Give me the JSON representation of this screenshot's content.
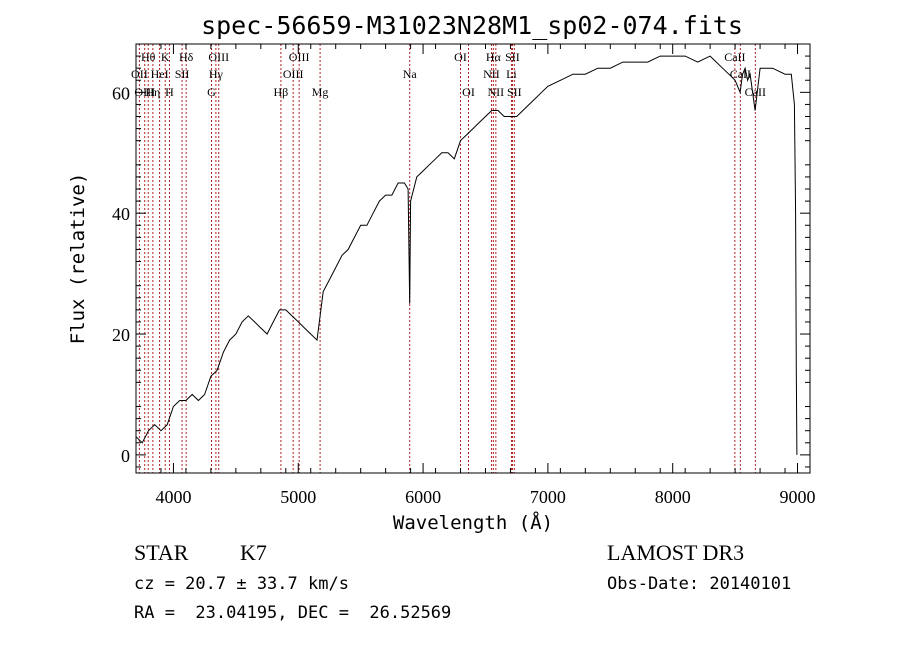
{
  "chart_data": {
    "type": "line",
    "title": "spec-56659-M31023N28M1_sp02-074.fits",
    "xlabel": "Wavelength (Å)",
    "ylabel": "Flux (relative)",
    "xlim": [
      3700,
      9100
    ],
    "ylim": [
      -3,
      68
    ],
    "x_ticks": [
      4000,
      5000,
      6000,
      7000,
      8000,
      9000
    ],
    "y_ticks": [
      0,
      20,
      40,
      60
    ],
    "grid": false,
    "series": [
      {
        "name": "flux",
        "color": "#000000",
        "points": [
          [
            3700,
            3
          ],
          [
            3750,
            2
          ],
          [
            3800,
            4
          ],
          [
            3850,
            5
          ],
          [
            3900,
            4
          ],
          [
            3950,
            5
          ],
          [
            4000,
            8
          ],
          [
            4050,
            9
          ],
          [
            4100,
            9
          ],
          [
            4150,
            10
          ],
          [
            4200,
            9
          ],
          [
            4250,
            10
          ],
          [
            4300,
            13
          ],
          [
            4350,
            14
          ],
          [
            4400,
            17
          ],
          [
            4450,
            19
          ],
          [
            4500,
            20
          ],
          [
            4550,
            22
          ],
          [
            4600,
            23
          ],
          [
            4650,
            22
          ],
          [
            4700,
            21
          ],
          [
            4750,
            20
          ],
          [
            4800,
            22
          ],
          [
            4850,
            24
          ],
          [
            4900,
            24
          ],
          [
            4950,
            23
          ],
          [
            5000,
            22
          ],
          [
            5050,
            21
          ],
          [
            5100,
            20
          ],
          [
            5150,
            19
          ],
          [
            5200,
            27
          ],
          [
            5250,
            29
          ],
          [
            5300,
            31
          ],
          [
            5350,
            33
          ],
          [
            5400,
            34
          ],
          [
            5450,
            36
          ],
          [
            5500,
            38
          ],
          [
            5550,
            38
          ],
          [
            5600,
            40
          ],
          [
            5650,
            42
          ],
          [
            5700,
            43
          ],
          [
            5750,
            43
          ],
          [
            5800,
            45
          ],
          [
            5850,
            45
          ],
          [
            5880,
            44
          ],
          [
            5893,
            25
          ],
          [
            5900,
            42
          ],
          [
            5950,
            46
          ],
          [
            6000,
            47
          ],
          [
            6050,
            48
          ],
          [
            6100,
            49
          ],
          [
            6150,
            50
          ],
          [
            6200,
            50
          ],
          [
            6250,
            49
          ],
          [
            6300,
            52
          ],
          [
            6350,
            53
          ],
          [
            6400,
            54
          ],
          [
            6450,
            55
          ],
          [
            6500,
            56
          ],
          [
            6550,
            57
          ],
          [
            6600,
            57
          ],
          [
            6650,
            56
          ],
          [
            6700,
            56
          ],
          [
            6750,
            56
          ],
          [
            6800,
            57
          ],
          [
            6850,
            58
          ],
          [
            6900,
            59
          ],
          [
            6950,
            60
          ],
          [
            7000,
            61
          ],
          [
            7100,
            62
          ],
          [
            7200,
            63
          ],
          [
            7300,
            63
          ],
          [
            7400,
            64
          ],
          [
            7500,
            64
          ],
          [
            7600,
            65
          ],
          [
            7700,
            65
          ],
          [
            7800,
            65
          ],
          [
            7900,
            66
          ],
          [
            8000,
            66
          ],
          [
            8100,
            66
          ],
          [
            8200,
            65
          ],
          [
            8300,
            66
          ],
          [
            8400,
            64
          ],
          [
            8450,
            63
          ],
          [
            8500,
            62
          ],
          [
            8540,
            60
          ],
          [
            8560,
            63
          ],
          [
            8580,
            64
          ],
          [
            8600,
            62
          ],
          [
            8620,
            63
          ],
          [
            8660,
            57
          ],
          [
            8700,
            64
          ],
          [
            8800,
            64
          ],
          [
            8900,
            63
          ],
          [
            8950,
            63
          ],
          [
            8975,
            58
          ],
          [
            8985,
            40
          ],
          [
            8990,
            14
          ],
          [
            8995,
            0
          ]
        ]
      }
    ],
    "lines": [
      {
        "label": "Hθ",
        "wavelength": 3798,
        "row": 1
      },
      {
        "label": "OII",
        "wavelength": 3727,
        "row": 2
      },
      {
        "label": "OIII",
        "wavelength": 3770,
        "row": 3
      },
      {
        "label": "K",
        "wavelength": 3934,
        "row": 1
      },
      {
        "label": "HeI",
        "wavelength": 3889,
        "row": 2
      },
      {
        "label": "Hη",
        "wavelength": 3835,
        "row": 3
      },
      {
        "label": "Hδ",
        "wavelength": 4102,
        "row": 1
      },
      {
        "label": "SII",
        "wavelength": 4069,
        "row": 2
      },
      {
        "label": "H",
        "wavelength": 3968,
        "row": 3
      },
      {
        "label": "OIII",
        "wavelength": 4363,
        "row": 1
      },
      {
        "label": "Hγ",
        "wavelength": 4340,
        "row": 2
      },
      {
        "label": "G",
        "wavelength": 4305,
        "row": 3
      },
      {
        "label": "OIII",
        "wavelength": 5007,
        "row": 1
      },
      {
        "label": "OIII",
        "wavelength": 4959,
        "row": 2
      },
      {
        "label": "Hβ",
        "wavelength": 4861,
        "row": 3
      },
      {
        "label": "Mg",
        "wavelength": 5175,
        "row": 3
      },
      {
        "label": "Na",
        "wavelength": 5893,
        "row": 2
      },
      {
        "label": "OI",
        "wavelength": 6300,
        "row": 1
      },
      {
        "label": "OI",
        "wavelength": 6364,
        "row": 3
      },
      {
        "label": "Hα",
        "wavelength": 6563,
        "row": 1
      },
      {
        "label": "SII",
        "wavelength": 6716,
        "row": 1
      },
      {
        "label": "NII",
        "wavelength": 6548,
        "row": 2
      },
      {
        "label": "Li",
        "wavelength": 6708,
        "row": 2
      },
      {
        "label": "NII",
        "wavelength": 6583,
        "row": 3
      },
      {
        "label": "SII",
        "wavelength": 6731,
        "row": 3
      },
      {
        "label": "CaII",
        "wavelength": 8498,
        "row": 1
      },
      {
        "label": "CaII",
        "wavelength": 8542,
        "row": 2
      },
      {
        "label": "CaII",
        "wavelength": 8662,
        "row": 3
      }
    ]
  },
  "info": {
    "object_class": "STAR",
    "subclass": "K7",
    "survey": "LAMOST DR3",
    "redshift": "cz = 20.7 ± 33.7 km/s",
    "obs_date": "Obs-Date: 20140101",
    "coords": "RA =  23.04195, DEC =  26.52569"
  }
}
